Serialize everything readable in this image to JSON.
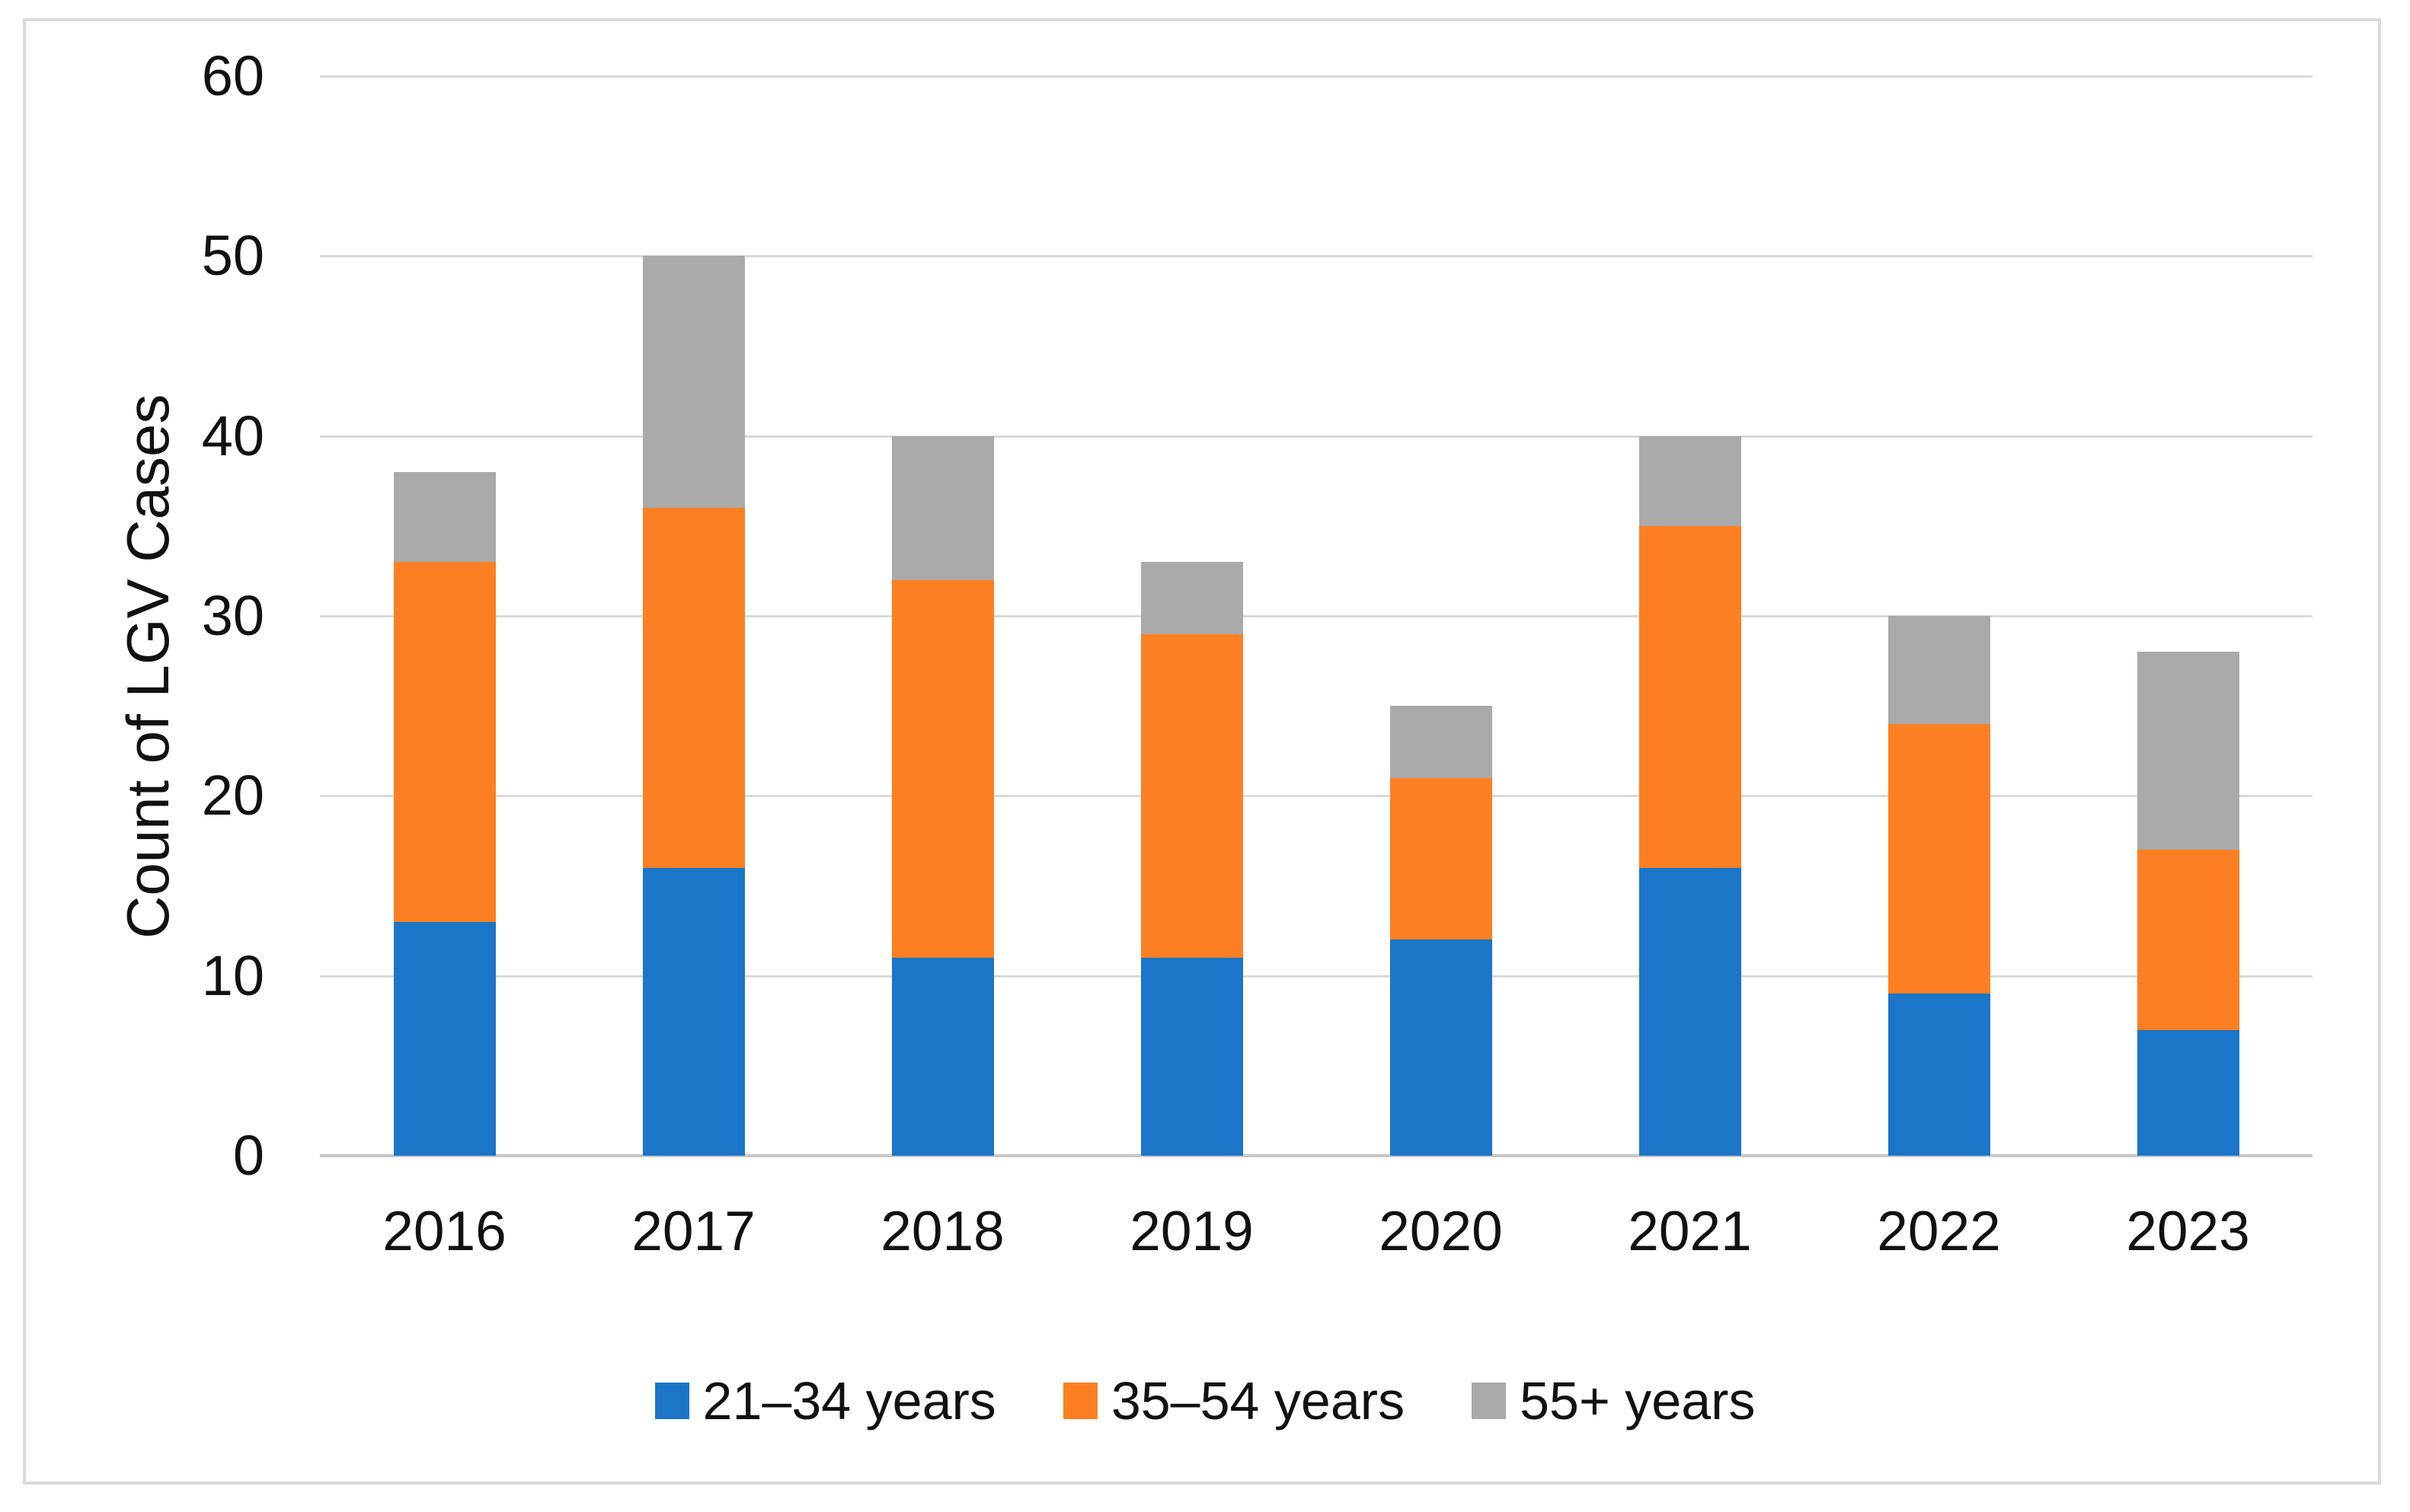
{
  "chart_data": {
    "type": "bar",
    "stacked": true,
    "title": "",
    "xlabel": "",
    "ylabel": "Count of LGV Cases",
    "categories": [
      "2016",
      "2017",
      "2018",
      "2019",
      "2020",
      "2021",
      "2022",
      "2023"
    ],
    "series": [
      {
        "name": "21–34 years",
        "color": "#1b75c8",
        "values": [
          13,
          16,
          11,
          11,
          12,
          16,
          9,
          7
        ]
      },
      {
        "name": "35–54 years",
        "color": "#fc8023",
        "values": [
          20,
          20,
          21,
          18,
          9,
          19,
          15,
          10
        ]
      },
      {
        "name": "55+ years",
        "color": "#aaaaaa",
        "values": [
          5,
          14,
          8,
          4,
          4,
          5,
          6,
          11
        ]
      }
    ],
    "stack_totals": [
      38,
      50,
      40,
      33,
      25,
      40,
      30,
      28
    ],
    "ylim": [
      0,
      60
    ],
    "yticks": [
      0,
      10,
      20,
      30,
      40,
      50,
      60
    ],
    "grid": "horizontal",
    "legend_position": "bottom"
  },
  "colors": {
    "background": "#ffffff",
    "frame_border": "#dadada",
    "gridline": "#d9d9d9",
    "axis_line": "#c6c6c6",
    "text": "#111111"
  }
}
